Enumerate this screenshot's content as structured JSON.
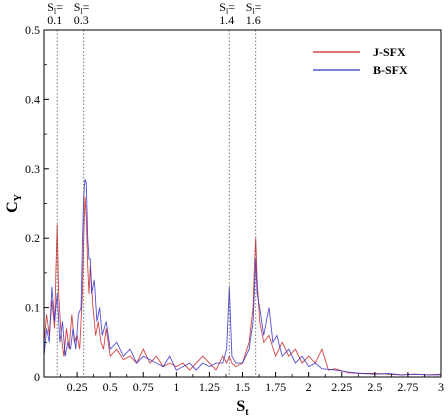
{
  "chart_data": {
    "type": "line",
    "title": "",
    "xlabel": "S",
    "xlabel_sub": "t",
    "ylabel": "C",
    "ylabel_sub": "Y",
    "xlim": [
      0,
      3
    ],
    "ylim": [
      0,
      0.5
    ],
    "xticks": [
      0.25,
      0.5,
      0.75,
      1,
      1.25,
      1.5,
      1.75,
      2,
      2.25,
      2.5,
      2.75,
      3
    ],
    "xtick_labels": [
      "0.25",
      "0.5",
      "0.75",
      "1",
      "1.25",
      "1.5",
      "1.75",
      "2",
      "2.25",
      "2.5",
      "2.75",
      "3"
    ],
    "yticks": [
      0,
      0.1,
      0.2,
      0.3,
      0.4,
      0.5
    ],
    "ytick_labels": [
      "0",
      "0.1",
      "0.2",
      "0.3",
      "0.4",
      "0.5"
    ],
    "grid": false,
    "legend_position": "top-right",
    "annotations": [
      {
        "x": 0.1,
        "prefix": "S",
        "sub": "l",
        "suffix": "=",
        "value": "0.1"
      },
      {
        "x": 0.3,
        "prefix": "S",
        "sub": "l",
        "suffix": "=",
        "value": "0.3"
      },
      {
        "x": 1.4,
        "prefix": "S",
        "sub": "l",
        "suffix": "=",
        "value": "1.4"
      },
      {
        "x": 1.6,
        "prefix": "S",
        "sub": "l",
        "suffix": "=",
        "value": "1.6"
      }
    ],
    "series": [
      {
        "name": "J-SFX",
        "color": "#cc2222",
        "points": [
          [
            0.0,
            0.05
          ],
          [
            0.02,
            0.09
          ],
          [
            0.04,
            0.06
          ],
          [
            0.06,
            0.11
          ],
          [
            0.08,
            0.07
          ],
          [
            0.09,
            0.15
          ],
          [
            0.1,
            0.22
          ],
          [
            0.11,
            0.12
          ],
          [
            0.13,
            0.06
          ],
          [
            0.15,
            0.03
          ],
          [
            0.17,
            0.07
          ],
          [
            0.19,
            0.04
          ],
          [
            0.21,
            0.09
          ],
          [
            0.23,
            0.05
          ],
          [
            0.25,
            0.06
          ],
          [
            0.27,
            0.04
          ],
          [
            0.29,
            0.12
          ],
          [
            0.3,
            0.2
          ],
          [
            0.31,
            0.26
          ],
          [
            0.32,
            0.23
          ],
          [
            0.33,
            0.16
          ],
          [
            0.34,
            0.12
          ],
          [
            0.35,
            0.16
          ],
          [
            0.37,
            0.1
          ],
          [
            0.39,
            0.06
          ],
          [
            0.41,
            0.08
          ],
          [
            0.43,
            0.05
          ],
          [
            0.45,
            0.04
          ],
          [
            0.47,
            0.07
          ],
          [
            0.5,
            0.03
          ],
          [
            0.55,
            0.04
          ],
          [
            0.6,
            0.025
          ],
          [
            0.65,
            0.03
          ],
          [
            0.7,
            0.02
          ],
          [
            0.75,
            0.04
          ],
          [
            0.8,
            0.02
          ],
          [
            0.85,
            0.03
          ],
          [
            0.9,
            0.015
          ],
          [
            0.95,
            0.02
          ],
          [
            1.0,
            0.015
          ],
          [
            1.05,
            0.02
          ],
          [
            1.1,
            0.01
          ],
          [
            1.15,
            0.02
          ],
          [
            1.2,
            0.03
          ],
          [
            1.25,
            0.02
          ],
          [
            1.3,
            0.01
          ],
          [
            1.35,
            0.03
          ],
          [
            1.38,
            0.02
          ],
          [
            1.4,
            0.03
          ],
          [
            1.42,
            0.02
          ],
          [
            1.45,
            0.015
          ],
          [
            1.5,
            0.02
          ],
          [
            1.55,
            0.05
          ],
          [
            1.58,
            0.1
          ],
          [
            1.59,
            0.16
          ],
          [
            1.6,
            0.2
          ],
          [
            1.61,
            0.14
          ],
          [
            1.63,
            0.08
          ],
          [
            1.66,
            0.05
          ],
          [
            1.7,
            0.06
          ],
          [
            1.75,
            0.03
          ],
          [
            1.8,
            0.05
          ],
          [
            1.85,
            0.03
          ],
          [
            1.9,
            0.04
          ],
          [
            1.95,
            0.02
          ],
          [
            2.0,
            0.03
          ],
          [
            2.05,
            0.02
          ],
          [
            2.1,
            0.04
          ],
          [
            2.15,
            0.01
          ],
          [
            2.2,
            0.012
          ],
          [
            2.3,
            0.006
          ],
          [
            2.4,
            0.005
          ],
          [
            2.5,
            0.005
          ],
          [
            2.6,
            0.004
          ],
          [
            2.7,
            0.003
          ],
          [
            2.8,
            0.004
          ],
          [
            2.9,
            0.003
          ],
          [
            3.0,
            0.004
          ]
        ]
      },
      {
        "name": "B-SFX",
        "color": "#3333cc",
        "points": [
          [
            0.0,
            0.03
          ],
          [
            0.02,
            0.07
          ],
          [
            0.04,
            0.05
          ],
          [
            0.06,
            0.13
          ],
          [
            0.08,
            0.08
          ],
          [
            0.1,
            0.12
          ],
          [
            0.12,
            0.05
          ],
          [
            0.14,
            0.08
          ],
          [
            0.16,
            0.03
          ],
          [
            0.18,
            0.05
          ],
          [
            0.2,
            0.04
          ],
          [
            0.22,
            0.07
          ],
          [
            0.24,
            0.04
          ],
          [
            0.26,
            0.09
          ],
          [
            0.28,
            0.1
          ],
          [
            0.29,
            0.19
          ],
          [
            0.3,
            0.26
          ],
          [
            0.31,
            0.285
          ],
          [
            0.32,
            0.28
          ],
          [
            0.33,
            0.2
          ],
          [
            0.34,
            0.17
          ],
          [
            0.35,
            0.17
          ],
          [
            0.36,
            0.12
          ],
          [
            0.38,
            0.14
          ],
          [
            0.4,
            0.08
          ],
          [
            0.42,
            0.1
          ],
          [
            0.44,
            0.06
          ],
          [
            0.47,
            0.08
          ],
          [
            0.5,
            0.04
          ],
          [
            0.55,
            0.05
          ],
          [
            0.6,
            0.03
          ],
          [
            0.65,
            0.04
          ],
          [
            0.7,
            0.02
          ],
          [
            0.75,
            0.03
          ],
          [
            0.8,
            0.025
          ],
          [
            0.85,
            0.02
          ],
          [
            0.9,
            0.015
          ],
          [
            0.95,
            0.03
          ],
          [
            1.0,
            0.01
          ],
          [
            1.05,
            0.015
          ],
          [
            1.1,
            0.02
          ],
          [
            1.15,
            0.01
          ],
          [
            1.2,
            0.02
          ],
          [
            1.25,
            0.015
          ],
          [
            1.3,
            0.02
          ],
          [
            1.35,
            0.02
          ],
          [
            1.38,
            0.04
          ],
          [
            1.39,
            0.08
          ],
          [
            1.4,
            0.13
          ],
          [
            1.41,
            0.08
          ],
          [
            1.42,
            0.03
          ],
          [
            1.45,
            0.02
          ],
          [
            1.5,
            0.02
          ],
          [
            1.55,
            0.04
          ],
          [
            1.58,
            0.08
          ],
          [
            1.6,
            0.17
          ],
          [
            1.61,
            0.12
          ],
          [
            1.63,
            0.1
          ],
          [
            1.66,
            0.06
          ],
          [
            1.7,
            0.1
          ],
          [
            1.73,
            0.05
          ],
          [
            1.76,
            0.06
          ],
          [
            1.8,
            0.03
          ],
          [
            1.85,
            0.04
          ],
          [
            1.9,
            0.02
          ],
          [
            1.95,
            0.03
          ],
          [
            2.0,
            0.015
          ],
          [
            2.05,
            0.02
          ],
          [
            2.1,
            0.012
          ],
          [
            2.2,
            0.01
          ],
          [
            2.3,
            0.007
          ],
          [
            2.4,
            0.005
          ],
          [
            2.5,
            0.004
          ],
          [
            2.6,
            0.005
          ],
          [
            2.7,
            0.003
          ],
          [
            2.8,
            0.004
          ],
          [
            2.9,
            0.003
          ],
          [
            3.0,
            0.003
          ]
        ]
      }
    ]
  }
}
